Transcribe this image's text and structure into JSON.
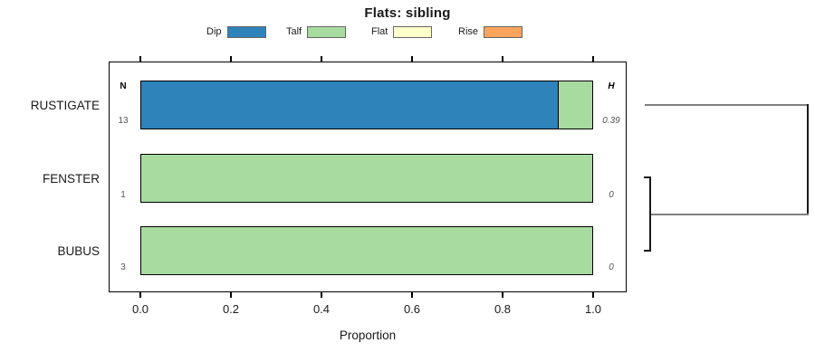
{
  "title": "Flats: sibling",
  "legend": [
    {
      "label": "Dip",
      "color": "#2e83bb"
    },
    {
      "label": "Talf",
      "color": "#a8dba0"
    },
    {
      "label": "Flat",
      "color": "#ffffcc"
    },
    {
      "label": "Rise",
      "color": "#fba55c"
    }
  ],
  "series_colors": {
    "Dip": "#2e83bb",
    "Talf": "#a8dba0",
    "Flat": "#ffffcc",
    "Rise": "#fba55c"
  },
  "col_headers": {
    "n": "N",
    "h": "H"
  },
  "rows": [
    {
      "label": "RUSTIGATE",
      "n": "13",
      "h": "0.39",
      "segments": [
        {
          "name": "Dip",
          "value": 0.923
        },
        {
          "name": "Talf",
          "value": 0.077
        }
      ]
    },
    {
      "label": "FENSTER",
      "n": "1",
      "h": "0",
      "segments": [
        {
          "name": "Talf",
          "value": 1
        }
      ]
    },
    {
      "label": "BUBUS",
      "n": "3",
      "h": "0",
      "segments": [
        {
          "name": "Talf",
          "value": 1
        }
      ]
    }
  ],
  "axis": {
    "tick_labels": [
      "0.0",
      "0.2",
      "0.4",
      "0.6",
      "0.8",
      "1.0"
    ],
    "xlabel": "Proportion"
  },
  "dendrogram": {
    "link_color": "#808080",
    "node_color": "#1a1a1a"
  },
  "chart_data": {
    "type": "bar",
    "orientation": "horizontal",
    "stacked": true,
    "title": "Flats: sibling",
    "xlabel": "Proportion",
    "xlim": [
      0,
      1
    ],
    "xticks": [
      0.0,
      0.2,
      0.4,
      0.6,
      0.8,
      1.0
    ],
    "grid": false,
    "legend_position": "top",
    "categories": [
      "RUSTIGATE",
      "FENSTER",
      "BUBUS"
    ],
    "series": [
      {
        "name": "Dip",
        "color": "#2e83bb",
        "values": [
          0.923,
          0,
          0
        ]
      },
      {
        "name": "Talf",
        "color": "#a8dba0",
        "values": [
          0.077,
          1,
          1
        ]
      },
      {
        "name": "Flat",
        "color": "#ffffcc",
        "values": [
          0,
          0,
          0
        ]
      },
      {
        "name": "Rise",
        "color": "#fba55c",
        "values": [
          0,
          0,
          0
        ]
      }
    ],
    "annotations": {
      "N": [
        "13",
        "1",
        "3"
      ],
      "H": [
        "0.39",
        "0",
        "0"
      ]
    },
    "right_panel": "dendrogram: FENSTER and BUBUS merge first, RUSTIGATE joins at maximum height"
  }
}
